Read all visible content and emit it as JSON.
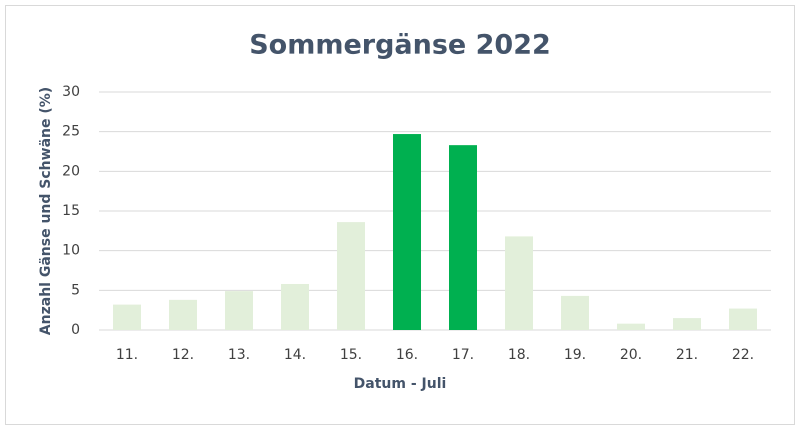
{
  "chart_data": {
    "type": "bar",
    "title": "Sommergänse 2022",
    "x_label": "Datum - Juli",
    "y_label": "Anzahl Gänse und Schwäne (%)",
    "categories": [
      "11.",
      "12.",
      "13.",
      "14.",
      "15.",
      "16.",
      "17.",
      "18.",
      "19.",
      "20.",
      "21.",
      "22."
    ],
    "values": [
      3.2,
      3.8,
      4.9,
      5.8,
      13.6,
      24.7,
      23.3,
      11.8,
      4.3,
      0.8,
      1.5,
      2.7
    ],
    "colors": [
      "#e2efda",
      "#e2efda",
      "#e2efda",
      "#e2efda",
      "#e2efda",
      "#00b050",
      "#00b050",
      "#e2efda",
      "#e2efda",
      "#e2efda",
      "#e2efda",
      "#e2efda"
    ],
    "ylim": [
      0,
      30
    ],
    "yticks": [
      0,
      5,
      10,
      15,
      20,
      25,
      30
    ],
    "grid": true
  }
}
